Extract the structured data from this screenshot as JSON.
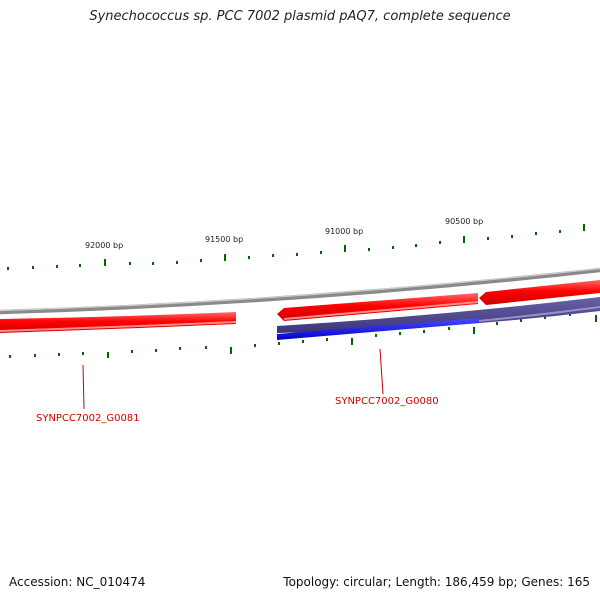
{
  "title": "Synechococcus sp. PCC 7002 plasmid pAQ7, complete sequence",
  "footer": {
    "accession": "Accession: NC_010474",
    "summary": "Topology: circular; Length: 186,459 bp; Genes: 165"
  },
  "ticks": [
    {
      "label": "92000 bp"
    },
    {
      "label": "91500 bp"
    },
    {
      "label": "91000 bp"
    },
    {
      "label": "90500 bp"
    }
  ],
  "genes": [
    {
      "name": "SYNPCC7002_G0081"
    },
    {
      "name": "SYNPCC7002_G0080"
    }
  ],
  "colors": {
    "forward_strand": "#ff0000",
    "reverse_strand": "#0000ff",
    "backbone": "#888888",
    "ticks": "#006600",
    "labels": "#cc0000"
  }
}
